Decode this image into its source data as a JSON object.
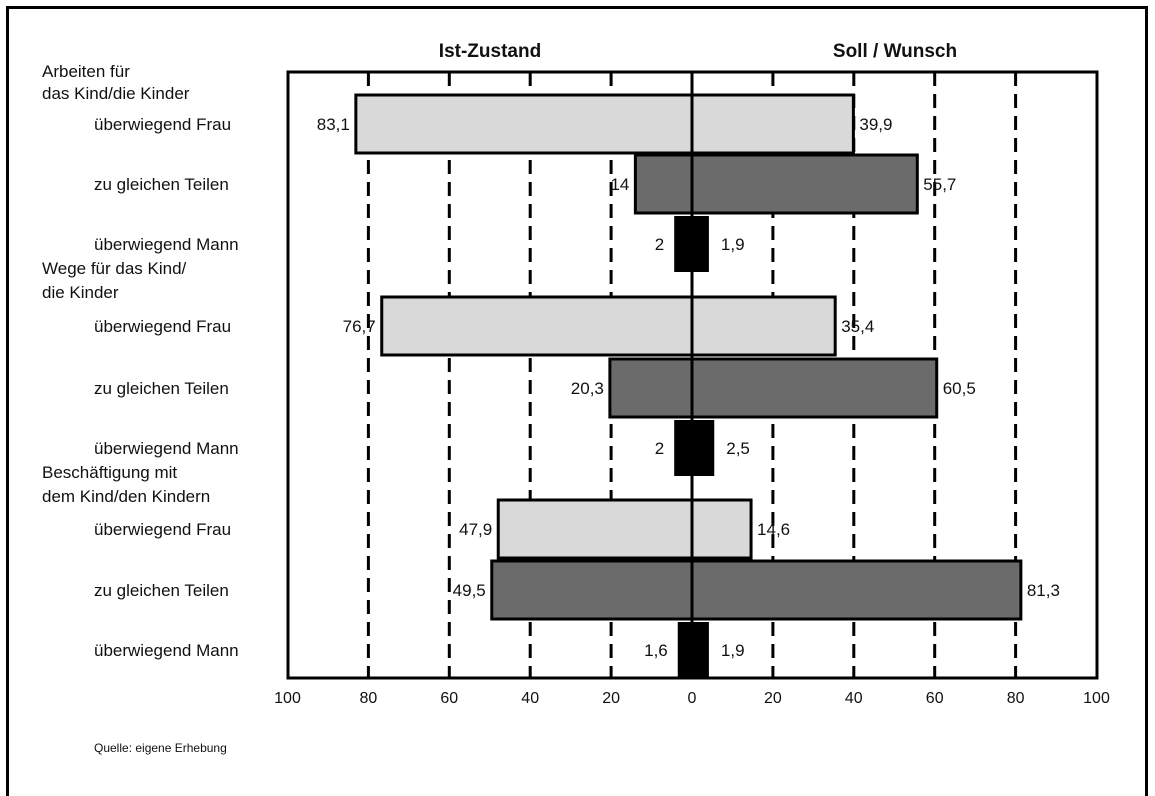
{
  "chart_data": {
    "type": "bar",
    "orientation": "horizontal-butterfly",
    "left_title": "Ist-Zustand",
    "right_title": "Soll / Wunsch",
    "x_ticks": [
      "100",
      "80",
      "60",
      "40",
      "20",
      "0",
      "20",
      "40",
      "60",
      "80",
      "100"
    ],
    "xlim": [
      -100,
      100
    ],
    "grid": "dashed-vertical",
    "groups": [
      {
        "label": [
          "Arbeiten für",
          "das Kind/die Kinder"
        ],
        "rows": [
          {
            "label": "überwiegend Frau",
            "left": 83.1,
            "right": 39.9,
            "left_text": "83,1",
            "right_text": "39,9",
            "style": "light"
          },
          {
            "label": "zu gleichen Teilen",
            "left": 14,
            "right": 55.7,
            "left_text": "14",
            "right_text": "55,7",
            "style": "dark"
          },
          {
            "label": "überwiegend Mann",
            "left": 2,
            "right": 1.9,
            "left_text": "2",
            "right_text": "1,9",
            "style": "black"
          }
        ]
      },
      {
        "label": [
          "Wege für das Kind/",
          "die Kinder"
        ],
        "rows": [
          {
            "label": "überwiegend Frau",
            "left": 76.7,
            "right": 35.4,
            "left_text": "76,7",
            "right_text": "35,4",
            "style": "light"
          },
          {
            "label": "zu gleichen Teilen",
            "left": 20.3,
            "right": 60.5,
            "left_text": "20,3",
            "right_text": "60,5",
            "style": "dark"
          },
          {
            "label": "überwiegend Mann",
            "left": 2,
            "right": 2.5,
            "left_text": "2",
            "right_text": "2,5",
            "style": "black"
          }
        ]
      },
      {
        "label": [
          "Beschäftigung mit",
          "dem Kind/den Kindern"
        ],
        "rows": [
          {
            "label": "überwiegend Frau",
            "left": 47.9,
            "right": 14.6,
            "left_text": "47,9",
            "right_text": "14,6",
            "style": "light"
          },
          {
            "label": "zu gleichen Teilen",
            "left": 49.5,
            "right": 81.3,
            "left_text": "49,5",
            "right_text": "81,3",
            "style": "dark"
          },
          {
            "label": "überwiegend Mann",
            "left": 1.6,
            "right": 1.9,
            "left_text": "1,6",
            "right_text": "1,9",
            "style": "black"
          }
        ]
      }
    ],
    "colors": {
      "light": "#d9d9d9",
      "dark": "#6b6b6b",
      "black": "#000000"
    },
    "source_note": "Quelle: eigene Erhebung"
  }
}
